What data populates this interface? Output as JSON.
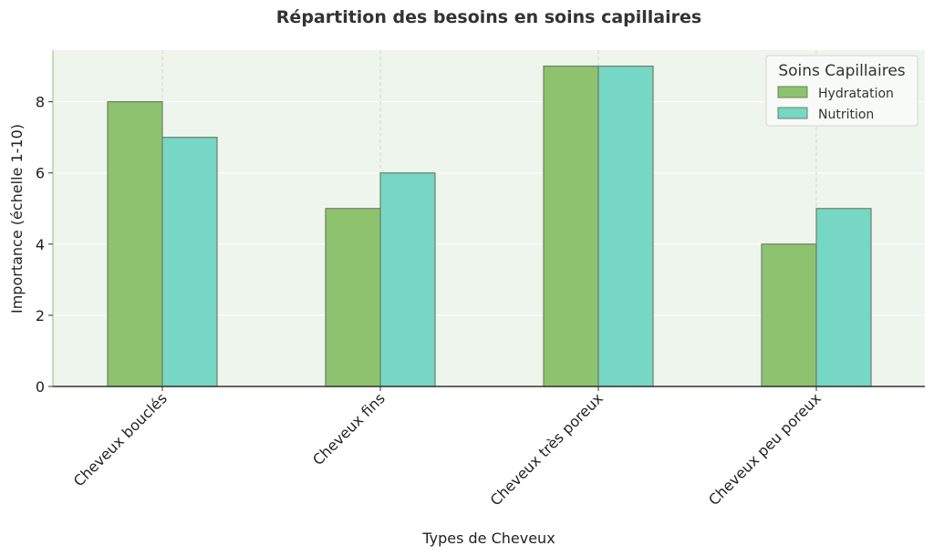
{
  "chart_data": {
    "type": "bar",
    "title": "Répartition des besoins en soins capillaires",
    "xlabel": "Types de Cheveux",
    "ylabel": "Importance (échelle 1-10)",
    "categories": [
      "Cheveux bouclés",
      "Cheveux fins",
      "Cheveux très poreux",
      "Cheveux peu poreux"
    ],
    "series": [
      {
        "name": "Hydratation",
        "values": [
          8,
          5,
          9,
          4
        ],
        "color": "#8dc36e"
      },
      {
        "name": "Nutrition",
        "values": [
          7,
          6,
          9,
          5
        ],
        "color": "#76d7c4"
      }
    ],
    "ylim": [
      0,
      9.45
    ],
    "yticks": [
      0,
      2,
      4,
      6,
      8
    ],
    "legend": {
      "title": "Soins Capillaires",
      "placement": "top-right"
    },
    "grid": true,
    "colors": {
      "plot_background": "#eef5ec",
      "bar_edge": "#6f7f6a",
      "axis": "#333333",
      "grid": "#cfdccb"
    }
  }
}
